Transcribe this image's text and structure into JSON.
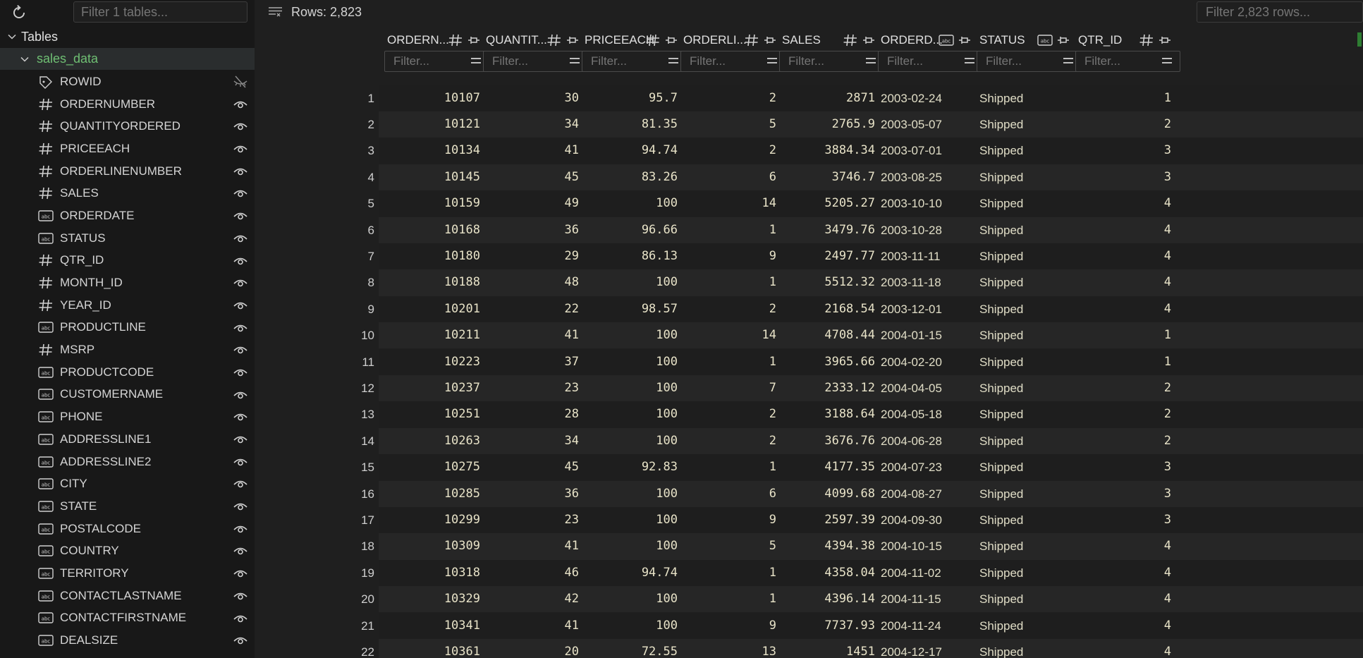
{
  "sidebar": {
    "filter_placeholder": "Filter 1 tables...",
    "tables_label": "Tables",
    "table_name": "sales_data",
    "columns": [
      {
        "name": "ROWID",
        "type": "rowid",
        "visible": false
      },
      {
        "name": "ORDERNUMBER",
        "type": "number",
        "visible": true
      },
      {
        "name": "QUANTITYORDERED",
        "type": "number",
        "visible": true
      },
      {
        "name": "PRICEEACH",
        "type": "number",
        "visible": true
      },
      {
        "name": "ORDERLINENUMBER",
        "type": "number",
        "visible": true
      },
      {
        "name": "SALES",
        "type": "number",
        "visible": true
      },
      {
        "name": "ORDERDATE",
        "type": "text",
        "visible": true
      },
      {
        "name": "STATUS",
        "type": "text",
        "visible": true
      },
      {
        "name": "QTR_ID",
        "type": "number",
        "visible": true
      },
      {
        "name": "MONTH_ID",
        "type": "number",
        "visible": true
      },
      {
        "name": "YEAR_ID",
        "type": "number",
        "visible": true
      },
      {
        "name": "PRODUCTLINE",
        "type": "text",
        "visible": true
      },
      {
        "name": "MSRP",
        "type": "number",
        "visible": true
      },
      {
        "name": "PRODUCTCODE",
        "type": "text",
        "visible": true
      },
      {
        "name": "CUSTOMERNAME",
        "type": "text",
        "visible": true
      },
      {
        "name": "PHONE",
        "type": "text",
        "visible": true
      },
      {
        "name": "ADDRESSLINE1",
        "type": "text",
        "visible": true
      },
      {
        "name": "ADDRESSLINE2",
        "type": "text",
        "visible": true
      },
      {
        "name": "CITY",
        "type": "text",
        "visible": true
      },
      {
        "name": "STATE",
        "type": "text",
        "visible": true
      },
      {
        "name": "POSTALCODE",
        "type": "text",
        "visible": true
      },
      {
        "name": "COUNTRY",
        "type": "text",
        "visible": true
      },
      {
        "name": "TERRITORY",
        "type": "text",
        "visible": true
      },
      {
        "name": "CONTACTLASTNAME",
        "type": "text",
        "visible": true
      },
      {
        "name": "CONTACTFIRSTNAME",
        "type": "text",
        "visible": true
      },
      {
        "name": "DEALSIZE",
        "type": "text",
        "visible": true
      }
    ]
  },
  "toolbar": {
    "rows_label": "Rows: 2,823",
    "filter_rows_placeholder": "Filter 2,823 rows..."
  },
  "grid": {
    "filter_placeholder": "Filter...",
    "headers": [
      {
        "label": "ORDERN...",
        "type": "number"
      },
      {
        "label": "QUANTIT...",
        "type": "number"
      },
      {
        "label": "PRICEEACH",
        "type": "number"
      },
      {
        "label": "ORDERLI...",
        "type": "number"
      },
      {
        "label": "SALES",
        "type": "number"
      },
      {
        "label": "ORDERD...",
        "type": "text"
      },
      {
        "label": "STATUS",
        "type": "text"
      },
      {
        "label": "QTR_ID",
        "type": "number"
      }
    ],
    "rows": [
      [
        "1",
        "10107",
        "30",
        "95.7",
        "2",
        "2871",
        "2003-02-24",
        "Shipped",
        "1"
      ],
      [
        "2",
        "10121",
        "34",
        "81.35",
        "5",
        "2765.9",
        "2003-05-07",
        "Shipped",
        "2"
      ],
      [
        "3",
        "10134",
        "41",
        "94.74",
        "2",
        "3884.34",
        "2003-07-01",
        "Shipped",
        "3"
      ],
      [
        "4",
        "10145",
        "45",
        "83.26",
        "6",
        "3746.7",
        "2003-08-25",
        "Shipped",
        "3"
      ],
      [
        "5",
        "10159",
        "49",
        "100",
        "14",
        "5205.27",
        "2003-10-10",
        "Shipped",
        "4"
      ],
      [
        "6",
        "10168",
        "36",
        "96.66",
        "1",
        "3479.76",
        "2003-10-28",
        "Shipped",
        "4"
      ],
      [
        "7",
        "10180",
        "29",
        "86.13",
        "9",
        "2497.77",
        "2003-11-11",
        "Shipped",
        "4"
      ],
      [
        "8",
        "10188",
        "48",
        "100",
        "1",
        "5512.32",
        "2003-11-18",
        "Shipped",
        "4"
      ],
      [
        "9",
        "10201",
        "22",
        "98.57",
        "2",
        "2168.54",
        "2003-12-01",
        "Shipped",
        "4"
      ],
      [
        "10",
        "10211",
        "41",
        "100",
        "14",
        "4708.44",
        "2004-01-15",
        "Shipped",
        "1"
      ],
      [
        "11",
        "10223",
        "37",
        "100",
        "1",
        "3965.66",
        "2004-02-20",
        "Shipped",
        "1"
      ],
      [
        "12",
        "10237",
        "23",
        "100",
        "7",
        "2333.12",
        "2004-04-05",
        "Shipped",
        "2"
      ],
      [
        "13",
        "10251",
        "28",
        "100",
        "2",
        "3188.64",
        "2004-05-18",
        "Shipped",
        "2"
      ],
      [
        "14",
        "10263",
        "34",
        "100",
        "2",
        "3676.76",
        "2004-06-28",
        "Shipped",
        "2"
      ],
      [
        "15",
        "10275",
        "45",
        "92.83",
        "1",
        "4177.35",
        "2004-07-23",
        "Shipped",
        "3"
      ],
      [
        "16",
        "10285",
        "36",
        "100",
        "6",
        "4099.68",
        "2004-08-27",
        "Shipped",
        "3"
      ],
      [
        "17",
        "10299",
        "23",
        "100",
        "9",
        "2597.39",
        "2004-09-30",
        "Shipped",
        "3"
      ],
      [
        "18",
        "10309",
        "41",
        "100",
        "5",
        "4394.38",
        "2004-10-15",
        "Shipped",
        "4"
      ],
      [
        "19",
        "10318",
        "46",
        "94.74",
        "1",
        "4358.04",
        "2004-11-02",
        "Shipped",
        "4"
      ],
      [
        "20",
        "10329",
        "42",
        "100",
        "1",
        "4396.14",
        "2004-11-15",
        "Shipped",
        "4"
      ],
      [
        "21",
        "10341",
        "41",
        "100",
        "9",
        "7737.93",
        "2004-11-24",
        "Shipped",
        "4"
      ],
      [
        "22",
        "10361",
        "20",
        "72.55",
        "13",
        "1451",
        "2004-12-17",
        "Shipped",
        "4"
      ]
    ]
  },
  "colors": {
    "background": "#1f1f1f",
    "sidebar": "#181818",
    "table_name": "#6fbf73",
    "cell_text": "#e8e3c8",
    "row_alt": "#262626"
  }
}
